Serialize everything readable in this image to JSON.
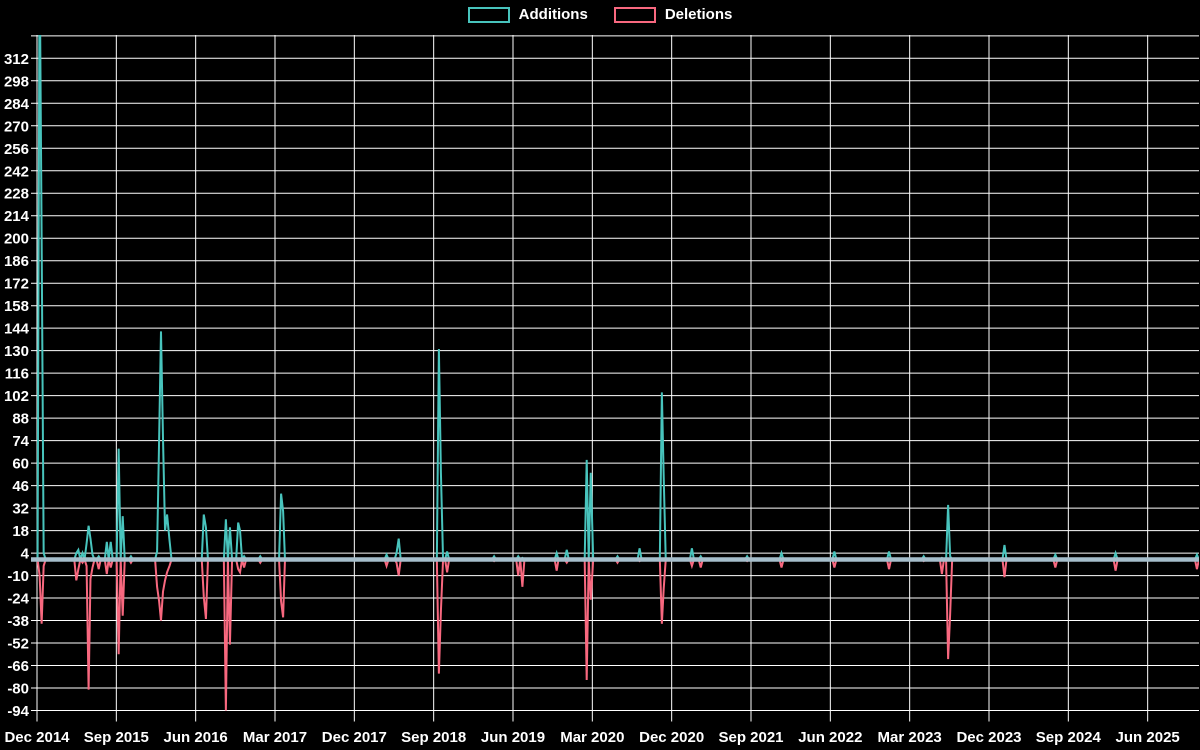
{
  "legend": [
    {
      "label": "Additions",
      "color": "#48c4bd"
    },
    {
      "label": "Deletions",
      "color": "#f8687f"
    }
  ],
  "colors": {
    "background": "#000000",
    "grid": "#ffffff",
    "text": "#ffffff",
    "zero_line": "#a6becb",
    "additions": "#48c4bd",
    "deletions": "#f8687f"
  },
  "chart_data": {
    "type": "line",
    "title": "",
    "xlabel": "",
    "ylabel": "",
    "point_interval": "weekly",
    "ylim": [
      -94,
      326
    ],
    "y_tick_step": 14,
    "y_tick_labels": [
      312,
      298,
      284,
      270,
      256,
      242,
      228,
      214,
      200,
      186,
      172,
      158,
      144,
      130,
      116,
      102,
      88,
      74,
      60,
      46,
      32,
      18,
      4,
      -10,
      -24,
      -38,
      -52,
      -66,
      -80,
      -94
    ],
    "x_tick_labels": [
      "Dec 2014",
      "Sep 2015",
      "Jun 2016",
      "Mar 2017",
      "Dec 2017",
      "Sep 2018",
      "Jun 2019",
      "Mar 2020",
      "Dec 2020",
      "Sep 2021",
      "Jun 2022",
      "Mar 2023",
      "Dec 2023",
      "Sep 2024",
      "Jun 2025"
    ],
    "x_tick_interval_months": 9,
    "x_start_date": "2014-12-01",
    "grid": true,
    "legend_position": "top-center",
    "notes": "Weeks not listed have value 0. First Additions spike exceeds the visible axis top (clipped at ~326).",
    "series": [
      {
        "name": "Additions",
        "color": "#48c4bd",
        "points": [
          [
            "2014-12-10",
            380
          ],
          [
            "2014-12-17",
            200
          ],
          [
            "2014-12-24",
            4
          ],
          [
            "2015-04-15",
            4
          ],
          [
            "2015-04-22",
            6
          ],
          [
            "2015-05-06",
            4
          ],
          [
            "2015-05-20",
            10
          ],
          [
            "2015-05-27",
            21
          ],
          [
            "2015-06-03",
            13
          ],
          [
            "2015-06-10",
            3
          ],
          [
            "2015-07-01",
            2
          ],
          [
            "2015-07-29",
            11
          ],
          [
            "2015-08-12",
            11
          ],
          [
            "2015-09-09",
            69
          ],
          [
            "2015-09-23",
            27
          ],
          [
            "2015-10-21",
            2
          ],
          [
            "2016-01-20",
            5
          ],
          [
            "2016-01-27",
            75
          ],
          [
            "2016-02-03",
            142
          ],
          [
            "2016-02-10",
            75
          ],
          [
            "2016-02-17",
            18
          ],
          [
            "2016-02-24",
            28
          ],
          [
            "2016-03-02",
            12
          ],
          [
            "2016-06-29",
            28
          ],
          [
            "2016-07-06",
            20
          ],
          [
            "2016-09-14",
            25
          ],
          [
            "2016-09-28",
            20
          ],
          [
            "2016-10-26",
            23
          ],
          [
            "2016-11-02",
            18
          ],
          [
            "2016-11-16",
            2
          ],
          [
            "2017-01-11",
            2
          ],
          [
            "2017-03-22",
            41
          ],
          [
            "2017-03-29",
            30
          ],
          [
            "2018-03-21",
            3
          ],
          [
            "2018-04-25",
            4
          ],
          [
            "2018-05-02",
            13
          ],
          [
            "2018-09-19",
            131
          ],
          [
            "2018-09-26",
            54
          ],
          [
            "2018-10-17",
            5
          ],
          [
            "2019-03-27",
            2
          ],
          [
            "2019-06-19",
            2
          ],
          [
            "2019-07-03",
            1
          ],
          [
            "2019-10-30",
            4
          ],
          [
            "2019-12-04",
            6
          ],
          [
            "2020-02-12",
            62
          ],
          [
            "2020-02-26",
            54
          ],
          [
            "2020-05-27",
            2
          ],
          [
            "2020-08-12",
            7
          ],
          [
            "2020-10-28",
            104
          ],
          [
            "2020-11-04",
            51
          ],
          [
            "2021-02-10",
            7
          ],
          [
            "2021-03-10",
            2
          ],
          [
            "2021-08-18",
            2
          ],
          [
            "2021-12-15",
            4
          ],
          [
            "2022-06-15",
            5
          ],
          [
            "2022-12-21",
            5
          ],
          [
            "2023-04-19",
            2
          ],
          [
            "2023-06-21",
            1
          ],
          [
            "2023-07-12",
            34
          ],
          [
            "2023-07-19",
            2
          ],
          [
            "2024-01-24",
            9
          ],
          [
            "2024-07-17",
            3
          ],
          [
            "2025-02-12",
            4
          ],
          [
            "2025-11-19",
            3
          ]
        ]
      },
      {
        "name": "Deletions",
        "color": "#f8687f",
        "points": [
          [
            "2014-12-10",
            -10
          ],
          [
            "2014-12-17",
            -40
          ],
          [
            "2014-12-24",
            -4
          ],
          [
            "2015-04-15",
            -13
          ],
          [
            "2015-04-22",
            -6
          ],
          [
            "2015-05-06",
            -2
          ],
          [
            "2015-05-20",
            -4
          ],
          [
            "2015-05-27",
            -81
          ],
          [
            "2015-06-03",
            -12
          ],
          [
            "2015-06-10",
            -5
          ],
          [
            "2015-07-01",
            -6
          ],
          [
            "2015-07-29",
            -9
          ],
          [
            "2015-08-12",
            -5
          ],
          [
            "2015-09-09",
            -59
          ],
          [
            "2015-09-23",
            -35
          ],
          [
            "2015-10-21",
            -2
          ],
          [
            "2016-01-20",
            -17
          ],
          [
            "2016-01-27",
            -26
          ],
          [
            "2016-02-03",
            -38
          ],
          [
            "2016-02-10",
            -20
          ],
          [
            "2016-02-17",
            -13
          ],
          [
            "2016-02-24",
            -8
          ],
          [
            "2016-03-02",
            -4
          ],
          [
            "2016-06-29",
            -23
          ],
          [
            "2016-07-06",
            -37
          ],
          [
            "2016-09-14",
            -94
          ],
          [
            "2016-09-28",
            -53
          ],
          [
            "2016-10-26",
            -6
          ],
          [
            "2016-11-02",
            -8
          ],
          [
            "2016-11-16",
            -5
          ],
          [
            "2017-01-11",
            -2
          ],
          [
            "2017-03-22",
            -26
          ],
          [
            "2017-03-29",
            -36
          ],
          [
            "2018-03-21",
            -4
          ],
          [
            "2018-04-25",
            -2
          ],
          [
            "2018-05-02",
            -10
          ],
          [
            "2018-09-19",
            -71
          ],
          [
            "2018-09-26",
            -32
          ],
          [
            "2018-10-17",
            -8
          ],
          [
            "2019-03-27",
            -1
          ],
          [
            "2019-06-19",
            -10
          ],
          [
            "2019-07-03",
            -17
          ],
          [
            "2019-10-30",
            -7
          ],
          [
            "2019-12-04",
            -2
          ],
          [
            "2020-02-12",
            -75
          ],
          [
            "2020-02-26",
            -25
          ],
          [
            "2020-05-27",
            -2
          ],
          [
            "2020-08-12",
            -1
          ],
          [
            "2020-10-28",
            -40
          ],
          [
            "2020-11-04",
            -18
          ],
          [
            "2021-02-10",
            -4
          ],
          [
            "2021-03-10",
            -5
          ],
          [
            "2021-08-18",
            -1
          ],
          [
            "2021-12-15",
            -5
          ],
          [
            "2022-06-15",
            -5
          ],
          [
            "2022-12-21",
            -6
          ],
          [
            "2023-04-19",
            -1
          ],
          [
            "2023-06-21",
            -9
          ],
          [
            "2023-07-12",
            -62
          ],
          [
            "2023-07-19",
            -34
          ],
          [
            "2024-01-24",
            -11
          ],
          [
            "2024-07-17",
            -5
          ],
          [
            "2025-02-12",
            -7
          ],
          [
            "2025-11-19",
            -6
          ]
        ]
      }
    ]
  }
}
